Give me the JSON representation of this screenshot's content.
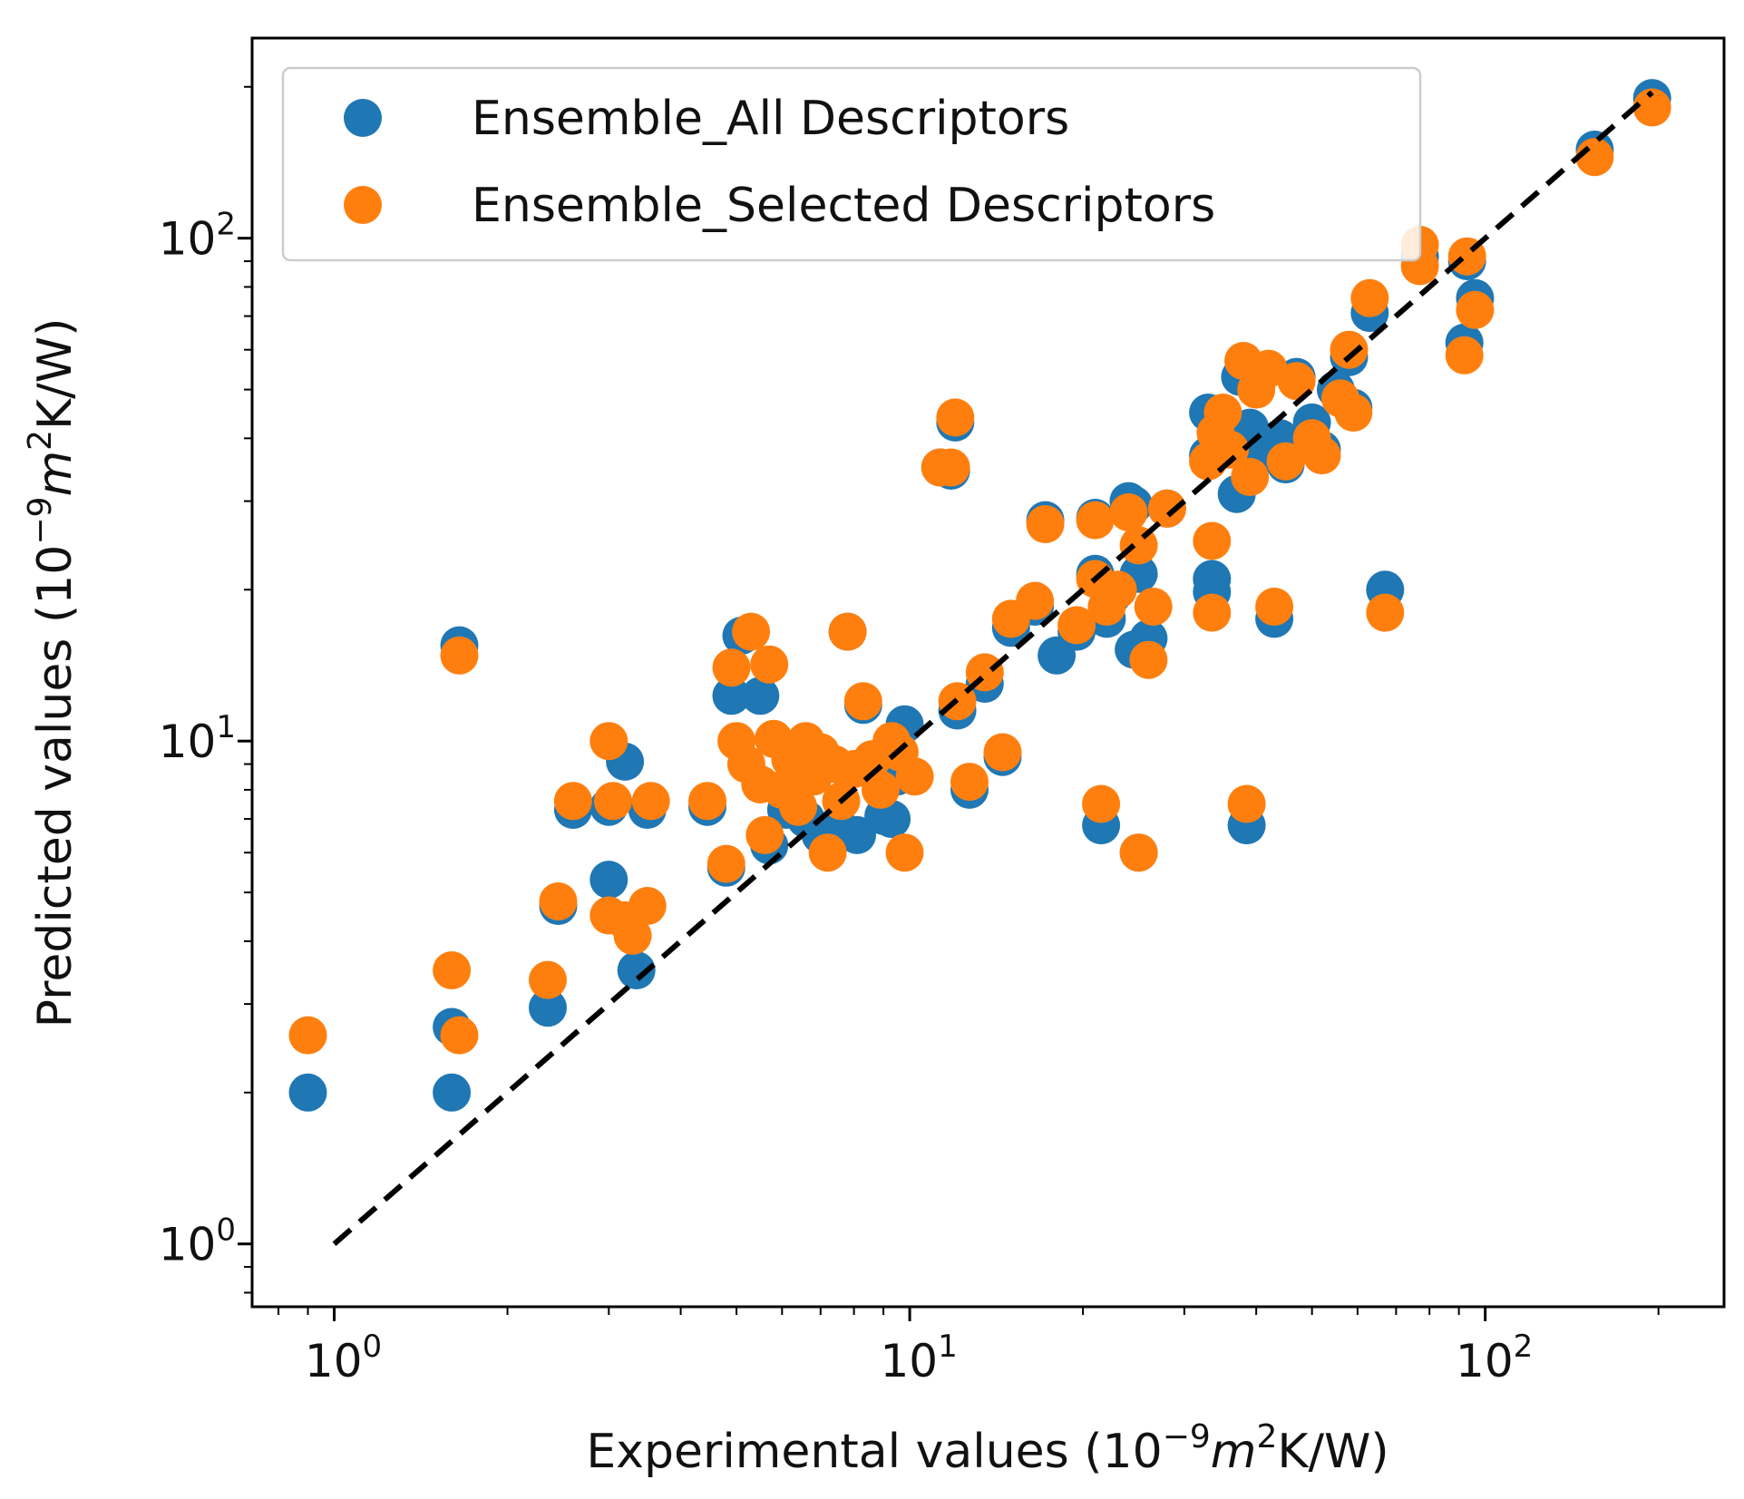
{
  "chart_data": {
    "type": "scatter",
    "xscale": "log",
    "yscale": "log",
    "xlim": [
      0.72,
      260
    ],
    "ylim": [
      0.75,
      250
    ],
    "grid": false,
    "legend_position": "top-left",
    "xlabel": {
      "prefix": "Experimental values (10",
      "exp": "−9",
      "var": "m",
      "exp2": "2",
      "suffix": "K/W)"
    },
    "ylabel": {
      "prefix": "Predicted values (10",
      "exp": "−9",
      "var": "m",
      "exp2": "2",
      "suffix": "K/W)"
    },
    "xticks": [
      {
        "value": 1,
        "base": "10",
        "exp": "0"
      },
      {
        "value": 10,
        "base": "10",
        "exp": "1"
      },
      {
        "value": 100,
        "base": "10",
        "exp": "2"
      }
    ],
    "yticks": [
      {
        "value": 1,
        "base": "10",
        "exp": "0"
      },
      {
        "value": 10,
        "base": "10",
        "exp": "1"
      },
      {
        "value": 100,
        "base": "10",
        "exp": "2"
      }
    ],
    "reference_line": {
      "style": "dashed",
      "color": "#000000",
      "x": [
        1,
        195
      ],
      "y": [
        1,
        195
      ]
    },
    "series": [
      {
        "name": "Ensemble_All Descriptors",
        "color": "#1f77b4",
        "points": [
          [
            0.9,
            2.0
          ],
          [
            1.6,
            2.7
          ],
          [
            1.6,
            2.0
          ],
          [
            1.65,
            15.5
          ],
          [
            2.35,
            2.95
          ],
          [
            2.45,
            4.7
          ],
          [
            2.6,
            7.3
          ],
          [
            3.0,
            5.3
          ],
          [
            3.0,
            7.4
          ],
          [
            3.2,
            9.1
          ],
          [
            3.35,
            3.5
          ],
          [
            3.5,
            7.3
          ],
          [
            4.45,
            7.4
          ],
          [
            4.8,
            5.6
          ],
          [
            4.9,
            12.3
          ],
          [
            5.1,
            16.2
          ],
          [
            5.5,
            12.3
          ],
          [
            5.7,
            6.2
          ],
          [
            6.1,
            7.3
          ],
          [
            6.6,
            7.0
          ],
          [
            7.0,
            6.5
          ],
          [
            7.5,
            6.8
          ],
          [
            7.8,
            16.5
          ],
          [
            8.1,
            6.5
          ],
          [
            8.3,
            11.8
          ],
          [
            9.0,
            7.1
          ],
          [
            9.3,
            7.0
          ],
          [
            9.5,
            8.5
          ],
          [
            9.8,
            10.8
          ],
          [
            11.3,
            35.0
          ],
          [
            11.8,
            34.5
          ],
          [
            12.0,
            43.0
          ],
          [
            12.1,
            11.5
          ],
          [
            12.7,
            8.0
          ],
          [
            13.5,
            13.0
          ],
          [
            14.5,
            9.3
          ],
          [
            15.0,
            16.8
          ],
          [
            16.5,
            18.5
          ],
          [
            17.2,
            27.5
          ],
          [
            18.0,
            14.8
          ],
          [
            19.5,
            16.5
          ],
          [
            21.0,
            27.8
          ],
          [
            21.0,
            21.5
          ],
          [
            21.5,
            6.8
          ],
          [
            22.0,
            17.5
          ],
          [
            22.5,
            19.5
          ],
          [
            24.0,
            30.0
          ],
          [
            24.5,
            29.5
          ],
          [
            24.5,
            15.2
          ],
          [
            25.0,
            21.5
          ],
          [
            25.0,
            6.0
          ],
          [
            26.0,
            16.0
          ],
          [
            28.0,
            29.0
          ],
          [
            33.0,
            45.0
          ],
          [
            33.0,
            37.0
          ],
          [
            33.5,
            21.0
          ],
          [
            33.5,
            19.8
          ],
          [
            35.0,
            42.0
          ],
          [
            37.0,
            31.0
          ],
          [
            37.5,
            53.0
          ],
          [
            38.5,
            6.8
          ],
          [
            39.0,
            42.0
          ],
          [
            40.5,
            37.0
          ],
          [
            43.0,
            17.5
          ],
          [
            44.0,
            40.0
          ],
          [
            45.0,
            35.5
          ],
          [
            47.0,
            53.0
          ],
          [
            50.0,
            43.0
          ],
          [
            52.0,
            38.0
          ],
          [
            55.0,
            50.0
          ],
          [
            58.0,
            58.0
          ],
          [
            59.0,
            46.0
          ],
          [
            63.0,
            71.0
          ],
          [
            67.0,
            20.0
          ],
          [
            77.0,
            92.0
          ],
          [
            92.0,
            62.0
          ],
          [
            93.0,
            90.0
          ],
          [
            96.0,
            76.0
          ],
          [
            155.0,
            150.0
          ],
          [
            195.0,
            190.0
          ]
        ]
      },
      {
        "name": "Ensemble_Selected Descriptors",
        "color": "#ff7f0e",
        "points": [
          [
            0.9,
            2.6
          ],
          [
            1.6,
            3.5
          ],
          [
            1.65,
            2.6
          ],
          [
            1.65,
            14.8
          ],
          [
            2.35,
            3.35
          ],
          [
            2.45,
            4.8
          ],
          [
            2.6,
            7.6
          ],
          [
            3.0,
            10.0
          ],
          [
            3.0,
            4.5
          ],
          [
            3.05,
            7.6
          ],
          [
            3.2,
            4.4
          ],
          [
            3.3,
            4.1
          ],
          [
            3.5,
            4.7
          ],
          [
            3.55,
            7.6
          ],
          [
            4.45,
            7.6
          ],
          [
            4.8,
            5.7
          ],
          [
            4.9,
            14.0
          ],
          [
            5.0,
            10.0
          ],
          [
            5.2,
            9.0
          ],
          [
            5.3,
            16.5
          ],
          [
            5.5,
            8.2
          ],
          [
            5.6,
            6.5
          ],
          [
            5.7,
            14.2
          ],
          [
            5.8,
            10.1
          ],
          [
            6.0,
            8.0
          ],
          [
            6.2,
            9.2
          ],
          [
            6.4,
            7.4
          ],
          [
            6.6,
            10.0
          ],
          [
            6.8,
            8.5
          ],
          [
            7.0,
            9.5
          ],
          [
            7.2,
            6.0
          ],
          [
            7.4,
            9.0
          ],
          [
            7.6,
            7.6
          ],
          [
            7.8,
            16.5
          ],
          [
            8.0,
            8.8
          ],
          [
            8.3,
            12.0
          ],
          [
            8.6,
            9.2
          ],
          [
            8.9,
            8.0
          ],
          [
            9.3,
            10.0
          ],
          [
            9.6,
            9.5
          ],
          [
            9.8,
            6.0
          ],
          [
            10.2,
            8.5
          ],
          [
            11.3,
            35.0
          ],
          [
            11.8,
            35.0
          ],
          [
            12.0,
            44.0
          ],
          [
            12.1,
            12.0
          ],
          [
            12.7,
            8.3
          ],
          [
            13.5,
            13.7
          ],
          [
            14.5,
            9.5
          ],
          [
            15.0,
            17.5
          ],
          [
            16.5,
            19.0
          ],
          [
            17.2,
            27.0
          ],
          [
            19.5,
            17.0
          ],
          [
            21.0,
            27.5
          ],
          [
            21.0,
            21.0
          ],
          [
            21.5,
            7.5
          ],
          [
            22.0,
            18.5
          ],
          [
            23.0,
            20.0
          ],
          [
            24.0,
            28.5
          ],
          [
            25.0,
            24.5
          ],
          [
            25.0,
            6.0
          ],
          [
            26.0,
            14.5
          ],
          [
            26.5,
            18.5
          ],
          [
            28.0,
            29.0
          ],
          [
            33.0,
            36.0
          ],
          [
            33.5,
            18.0
          ],
          [
            33.5,
            25.0
          ],
          [
            34.0,
            41.0
          ],
          [
            35.0,
            45.0
          ],
          [
            36.0,
            38.0
          ],
          [
            38.0,
            57.0
          ],
          [
            38.5,
            7.5
          ],
          [
            39.0,
            33.5
          ],
          [
            40.0,
            50.0
          ],
          [
            42.0,
            55.0
          ],
          [
            43.0,
            18.5
          ],
          [
            45.0,
            36.0
          ],
          [
            47.0,
            52.0
          ],
          [
            50.0,
            40.0
          ],
          [
            52.0,
            37.0
          ],
          [
            56.0,
            48.0
          ],
          [
            58.0,
            60.0
          ],
          [
            59.0,
            45.0
          ],
          [
            63.0,
            76.0
          ],
          [
            67.0,
            18.0
          ],
          [
            77.0,
            88.0
          ],
          [
            77.0,
            97.0
          ],
          [
            92.0,
            58.5
          ],
          [
            93.0,
            92.0
          ],
          [
            96.0,
            72.0
          ],
          [
            155.0,
            145.0
          ],
          [
            195.0,
            182.0
          ]
        ]
      }
    ]
  }
}
